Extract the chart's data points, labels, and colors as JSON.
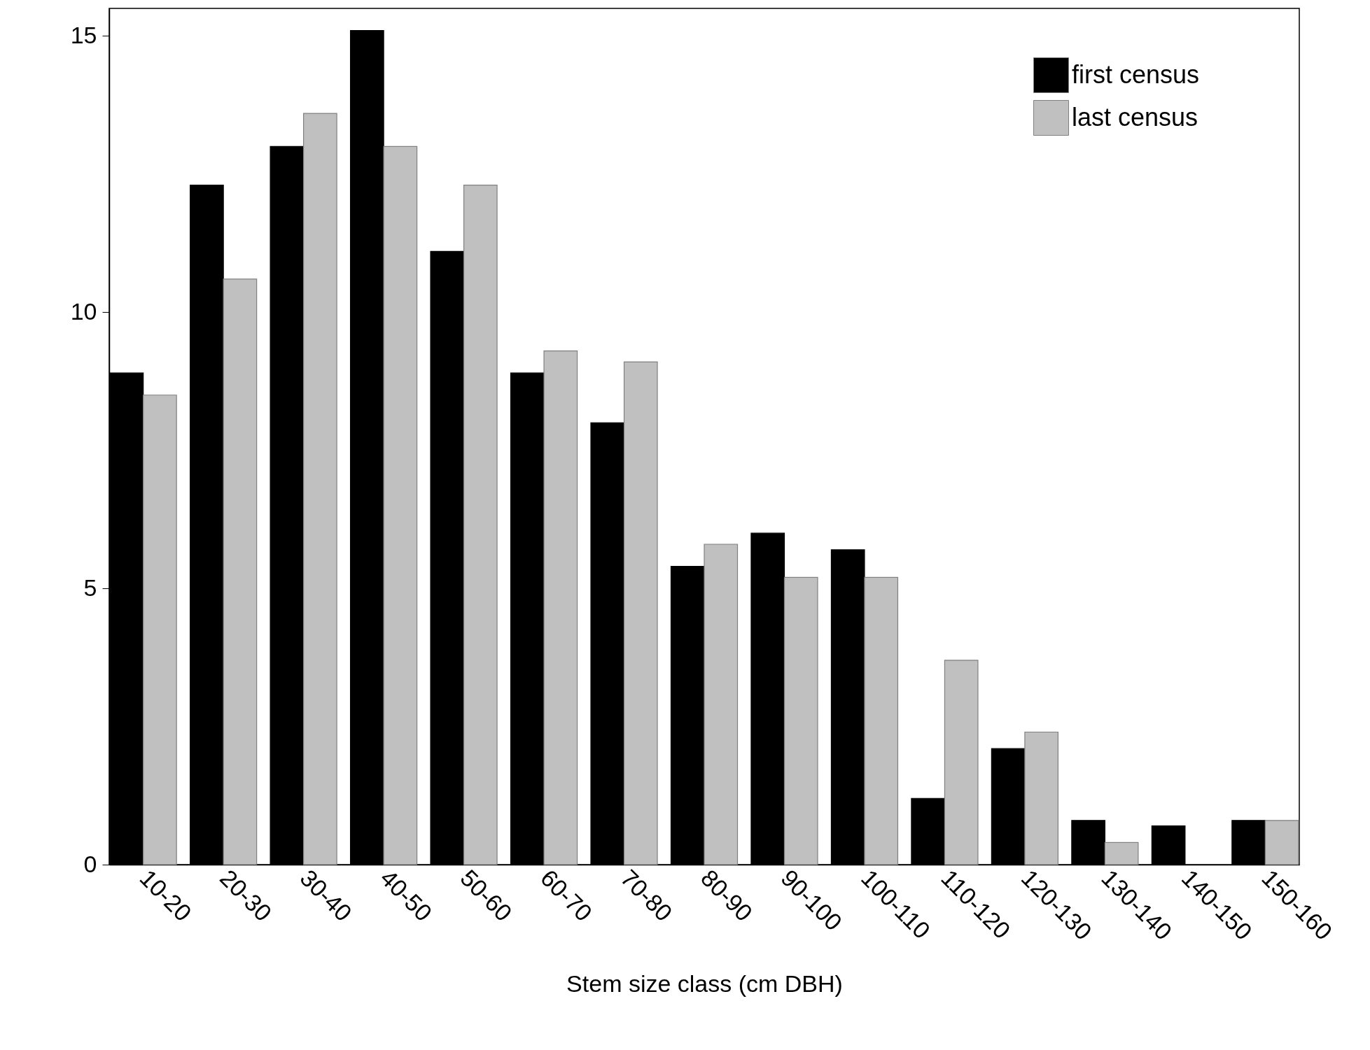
{
  "chart_data": {
    "type": "bar",
    "xlabel": "Stem size class (cm DBH)",
    "categories": [
      "10-20",
      "20-30",
      "30-40",
      "40-50",
      "50-60",
      "60-70",
      "70-80",
      "80-90",
      "90-100",
      "100-110",
      "110-120",
      "120-130",
      "130-140",
      "140-150",
      "150-160"
    ],
    "series": [
      {
        "name": "first census",
        "color": "#000000",
        "values": [
          8.9,
          12.3,
          13.0,
          15.1,
          11.1,
          8.9,
          8.0,
          5.4,
          6.0,
          5.7,
          1.2,
          2.1,
          0.8,
          0.7,
          0.8
        ]
      },
      {
        "name": "last census",
        "color": "#c0c0c0",
        "values": [
          8.5,
          10.6,
          13.6,
          13.0,
          12.3,
          9.3,
          9.1,
          5.8,
          5.2,
          5.2,
          3.7,
          2.4,
          0.4,
          null,
          0.8
        ]
      }
    ],
    "ylim": [
      0,
      15.5
    ],
    "yticks": [
      0,
      5,
      10,
      15
    ],
    "grid": false,
    "legend": "top right"
  }
}
